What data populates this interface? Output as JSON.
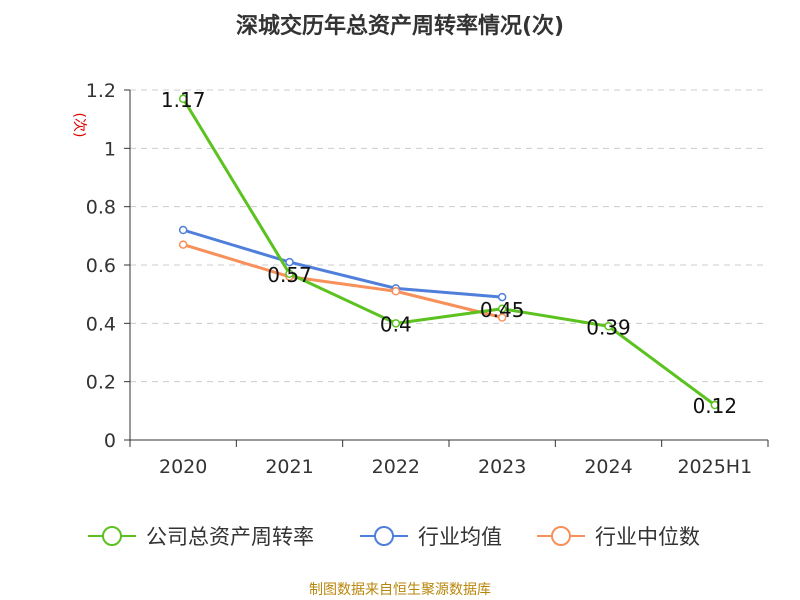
{
  "chart_data": {
    "type": "line",
    "title": "深城交历年总资产周转率情况(次)",
    "ylabel": "(次)",
    "xlabel": "",
    "categories": [
      "2020",
      "2021",
      "2022",
      "2023",
      "2024",
      "2025H1"
    ],
    "ylim": [
      0,
      1.2
    ],
    "yticks": [
      "0",
      "0.2",
      "0.4",
      "0.6",
      "0.8",
      "1",
      "1.2"
    ],
    "grid": true,
    "legend_position": "bottom",
    "series": [
      {
        "name": "公司总资产周转率",
        "color": "#5bc21f",
        "values": [
          1.17,
          0.57,
          0.4,
          0.45,
          0.39,
          0.12
        ],
        "labels": [
          "1.17",
          "0.57",
          "0.4",
          "0.45",
          "0.39",
          "0.12"
        ]
      },
      {
        "name": "行业均值",
        "color": "#4f7fdb",
        "values": [
          0.72,
          0.61,
          0.52,
          0.49,
          null,
          null
        ]
      },
      {
        "name": "行业中位数",
        "color": "#f7905a",
        "values": [
          0.67,
          0.56,
          0.51,
          0.42,
          null,
          null
        ]
      }
    ],
    "source": "制图数据来自恒生聚源数据库"
  }
}
